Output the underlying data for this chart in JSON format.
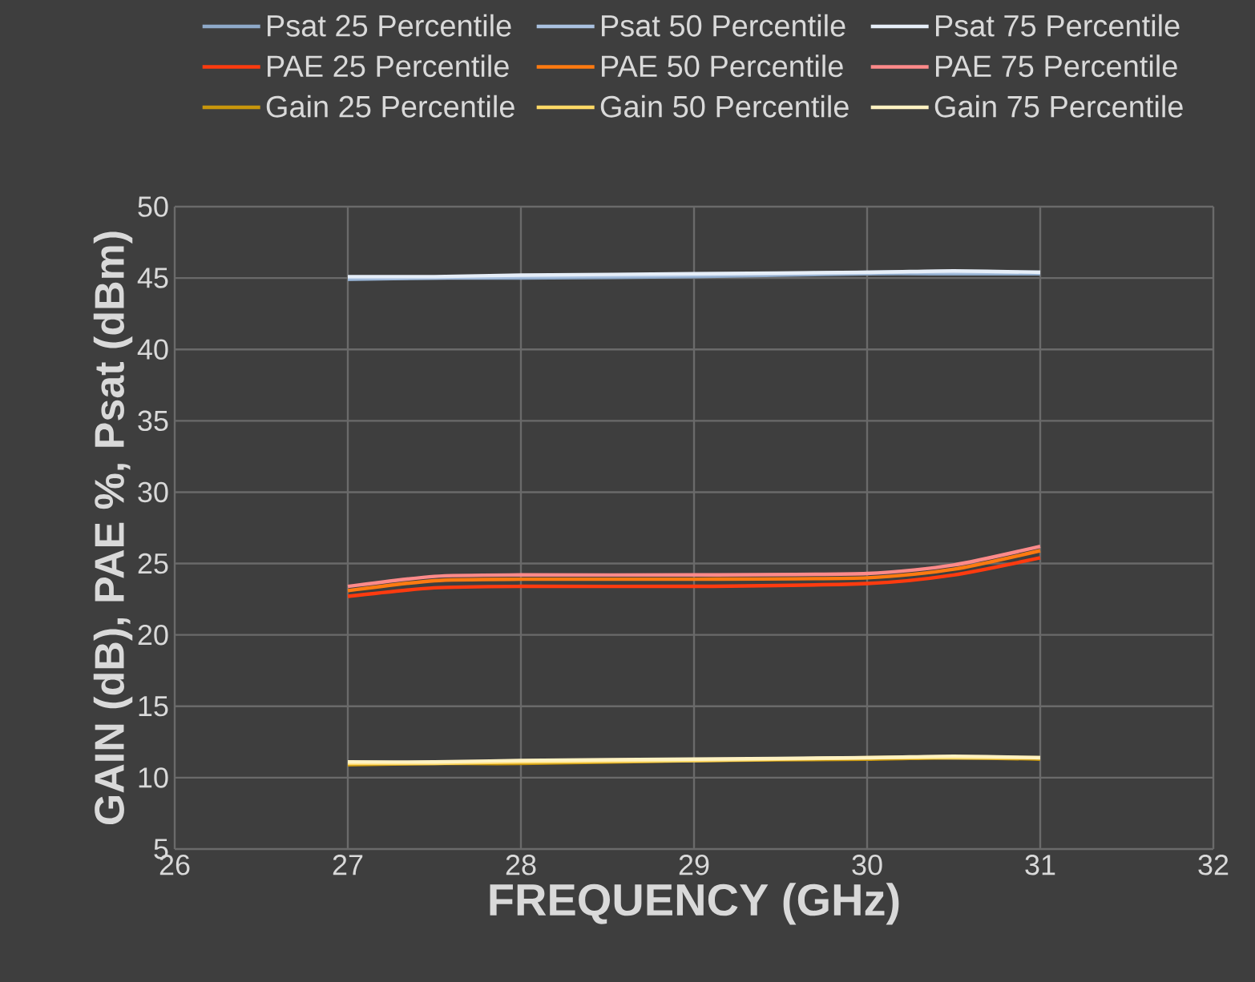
{
  "chart_data": {
    "type": "line",
    "xlabel": "FREQUENCY (GHz)",
    "ylabel": "GAIN (dB), PAE %, Psat (dBm)",
    "xlim": [
      26,
      32
    ],
    "ylim": [
      5,
      50
    ],
    "xticks": [
      26,
      27,
      28,
      29,
      30,
      31,
      32
    ],
    "yticks": [
      5,
      10,
      15,
      20,
      25,
      30,
      35,
      40,
      45,
      50
    ],
    "grid": true,
    "legend": "top",
    "x": [
      27,
      27.5,
      28,
      29,
      30,
      30.5,
      31
    ],
    "series": [
      {
        "name": "Psat 25 Percentile",
        "color": "#8ea9c9",
        "values": [
          44.9,
          45.0,
          45.0,
          45.1,
          45.3,
          45.3,
          45.3
        ]
      },
      {
        "name": "Psat 50 Percentile",
        "color": "#a9c1e0",
        "values": [
          45.0,
          45.0,
          45.1,
          45.2,
          45.4,
          45.4,
          45.4
        ]
      },
      {
        "name": "Psat 75 Percentile",
        "color": "#e6eef8",
        "values": [
          45.1,
          45.1,
          45.2,
          45.3,
          45.4,
          45.5,
          45.4
        ]
      },
      {
        "name": "PAE 25 Percentile",
        "color": "#ff3b0f",
        "values": [
          22.7,
          23.3,
          23.4,
          23.4,
          23.6,
          24.2,
          25.4
        ]
      },
      {
        "name": "PAE 50 Percentile",
        "color": "#ff7a10",
        "values": [
          23.1,
          23.8,
          23.9,
          23.9,
          24.0,
          24.6,
          25.9
        ]
      },
      {
        "name": "PAE 75 Percentile",
        "color": "#ff8a8a",
        "values": [
          23.4,
          24.1,
          24.2,
          24.2,
          24.3,
          24.9,
          26.2
        ]
      },
      {
        "name": "Gain 25 Percentile",
        "color": "#c8960c",
        "values": [
          10.9,
          11.0,
          11.0,
          11.2,
          11.3,
          11.4,
          11.3
        ]
      },
      {
        "name": "Gain 50 Percentile",
        "color": "#ffd966",
        "values": [
          11.0,
          11.0,
          11.1,
          11.2,
          11.4,
          11.4,
          11.4
        ]
      },
      {
        "name": "Gain 75 Percentile",
        "color": "#fff2c2",
        "values": [
          11.1,
          11.1,
          11.2,
          11.3,
          11.4,
          11.5,
          11.4
        ]
      }
    ]
  }
}
